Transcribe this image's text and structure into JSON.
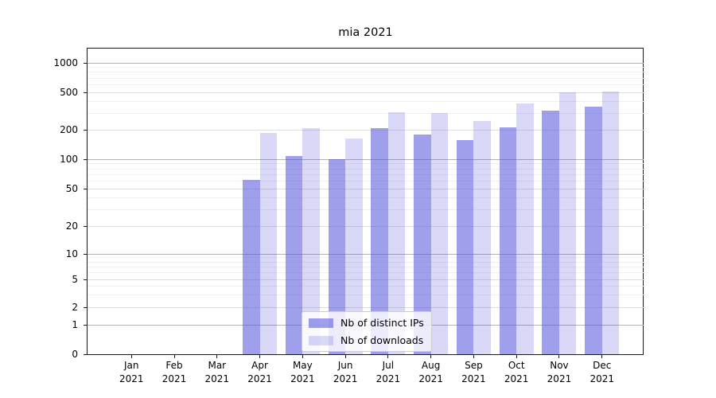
{
  "title": "mia 2021",
  "chart_data": {
    "type": "bar",
    "title": "mia 2021",
    "y_scale": "symlog",
    "ylim": [
      0,
      1400
    ],
    "grid": true,
    "legend_position": "lower center",
    "y_ticks": [
      0,
      1,
      2,
      5,
      10,
      20,
      50,
      100,
      200,
      500,
      1000
    ],
    "y_tick_labels": [
      "0",
      "1",
      "2",
      "5",
      "10",
      "20",
      "50",
      "100",
      "200",
      "500",
      "1000"
    ],
    "minor_gridline_values": [
      3,
      4,
      6,
      7,
      8,
      9,
      30,
      40,
      60,
      70,
      80,
      90,
      300,
      400,
      600,
      700,
      800,
      900
    ],
    "categories": [
      "Jan 2021",
      "Feb 2021",
      "Mar 2021",
      "Apr 2021",
      "May 2021",
      "Jun 2021",
      "Jul 2021",
      "Aug 2021",
      "Sep 2021",
      "Oct 2021",
      "Nov 2021",
      "Dec 2021"
    ],
    "x_tick_labels": [
      [
        "Jan",
        "2021"
      ],
      [
        "Feb",
        "2021"
      ],
      [
        "Mar",
        "2021"
      ],
      [
        "Apr",
        "2021"
      ],
      [
        "May",
        "2021"
      ],
      [
        "Jun",
        "2021"
      ],
      [
        "Jul",
        "2021"
      ],
      [
        "Aug",
        "2021"
      ],
      [
        "Sep",
        "2021"
      ],
      [
        "Oct",
        "2021"
      ],
      [
        "Nov",
        "2021"
      ],
      [
        "Dec",
        "2021"
      ]
    ],
    "series": [
      {
        "name": "Nb of distinct IPs",
        "color": "rgba(80,80,220,0.55)",
        "rendered_hex": "#9f9fec",
        "values": [
          0,
          0,
          0,
          62,
          108,
          101,
          210,
          180,
          157,
          215,
          320,
          350
        ]
      },
      {
        "name": "Nb of downloads",
        "color": "rgba(80,80,220,0.22)",
        "rendered_hex": "#d8d8f7",
        "values": [
          0,
          0,
          0,
          185,
          210,
          165,
          310,
          305,
          250,
          380,
          500,
          510
        ]
      }
    ]
  },
  "grid_colors": {
    "major": "#b3b3b3",
    "labeled_minor": "#dedede",
    "minor": "#efefef"
  }
}
